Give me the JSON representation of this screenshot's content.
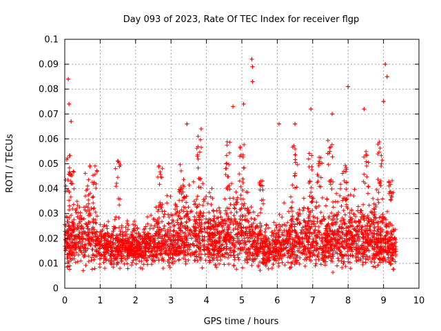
{
  "chart_data": {
    "type": "scatter",
    "title": "Day 093 of 2023, Rate Of TEC Index for receiver flgp",
    "xlabel": "GPS time / hours",
    "ylabel": "ROTI / TECUs",
    "xlim": [
      0,
      10
    ],
    "ylim": [
      0,
      0.1
    ],
    "x_ticks": [
      "0",
      "1",
      "2",
      "3",
      "4",
      "5",
      "6",
      "7",
      "8",
      "9",
      "10"
    ],
    "y_ticks": [
      "0",
      "0.01",
      "0.02",
      "0.03",
      "0.04",
      "0.05",
      "0.06",
      "0.07",
      "0.08",
      "0.09",
      "0.1"
    ],
    "grid": true,
    "marker": "+",
    "color": "#ff0000",
    "time_range_hours": [
      0,
      9.35
    ],
    "series": [
      {
        "name": "ROTI",
        "note": "dense scatter of ~3000 points; baseline mostly between 0.005 and 0.025 TECU/s; notable outliers listed",
        "outliers": [
          {
            "x": 0.1,
            "y": 0.084
          },
          {
            "x": 0.12,
            "y": 0.074
          },
          {
            "x": 0.18,
            "y": 0.067
          },
          {
            "x": 3.45,
            "y": 0.066
          },
          {
            "x": 3.85,
            "y": 0.064
          },
          {
            "x": 4.75,
            "y": 0.073
          },
          {
            "x": 5.05,
            "y": 0.074
          },
          {
            "x": 5.28,
            "y": 0.092
          },
          {
            "x": 5.3,
            "y": 0.089
          },
          {
            "x": 5.3,
            "y": 0.083
          },
          {
            "x": 6.05,
            "y": 0.066
          },
          {
            "x": 6.5,
            "y": 0.066
          },
          {
            "x": 6.95,
            "y": 0.072
          },
          {
            "x": 7.55,
            "y": 0.07
          },
          {
            "x": 8.0,
            "y": 0.081
          },
          {
            "x": 8.45,
            "y": 0.072
          },
          {
            "x": 9.05,
            "y": 0.09
          },
          {
            "x": 9.1,
            "y": 0.085
          },
          {
            "x": 9.0,
            "y": 0.075
          }
        ]
      }
    ]
  }
}
